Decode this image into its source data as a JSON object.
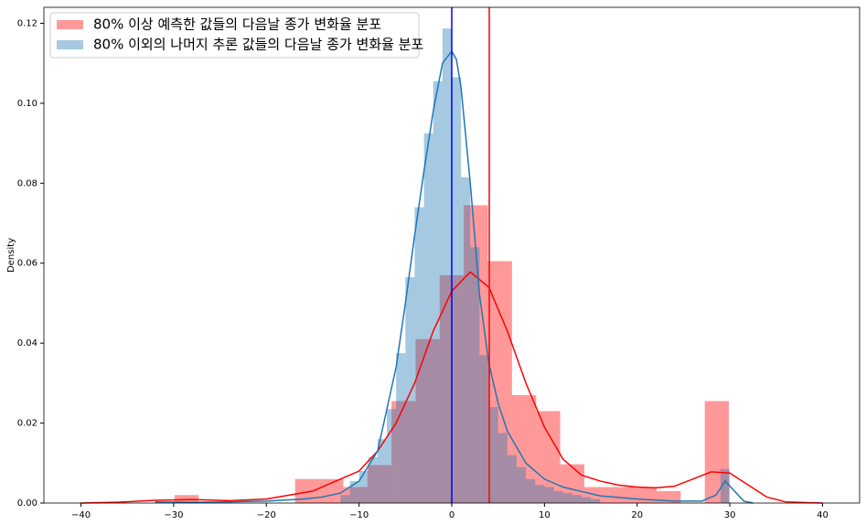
{
  "chart_data": {
    "type": "histogram",
    "ylabel": "Density",
    "xlim": [
      -44,
      44
    ],
    "ylim": [
      0,
      0.124
    ],
    "xticks": [
      {
        "value": -40,
        "label": "−40"
      },
      {
        "value": -30,
        "label": "−30"
      },
      {
        "value": -20,
        "label": "−20"
      },
      {
        "value": -10,
        "label": "−10"
      },
      0,
      10,
      20,
      30,
      40
    ],
    "yticks": [
      {
        "value": 0,
        "label": "0.00"
      },
      0.02,
      0.04,
      0.06,
      0.08,
      {
        "value": 0.1,
        "label": "0.10"
      },
      0.12
    ],
    "grid": false,
    "legend": "upper left",
    "series": [
      {
        "name": "80% 이상 예측한 값들의 다음날 종가 변화율 분포",
        "color": "#ff0000",
        "line_color": "#ff0000",
        "bins": [
          -29.9,
          -27.3,
          -24.7,
          -22.1,
          -19.5,
          -16.9,
          -14.3,
          -11.7,
          -9.1,
          -6.5,
          -3.9,
          -1.3,
          1.3,
          3.9,
          6.5,
          9.1,
          11.7,
          14.3,
          16.9,
          19.5,
          22.1,
          24.7,
          27.3,
          29.9
        ],
        "values": [
          0.002,
          0,
          0,
          0,
          0,
          0.006,
          0.006,
          0.004,
          0.0095,
          0.0255,
          0.041,
          0.057,
          0.0745,
          0.0605,
          0.027,
          0.023,
          0.0097,
          0.004,
          0.004,
          0.004,
          0.003,
          0,
          0.0255
        ],
        "kde_x": [
          -40,
          -36,
          -32,
          -28,
          -24,
          -20,
          -15,
          -10,
          -8,
          -6,
          -4,
          -2,
          0,
          2,
          4,
          6,
          8,
          10,
          12,
          14,
          16,
          18,
          20,
          22,
          24,
          26,
          28,
          30,
          32,
          34,
          36,
          40
        ],
        "kde_y": [
          0,
          0.0002,
          0.0007,
          0.0009,
          0.0006,
          0.001,
          0.003,
          0.008,
          0.013,
          0.02,
          0.03,
          0.043,
          0.053,
          0.0578,
          0.054,
          0.043,
          0.03,
          0.019,
          0.011,
          0.007,
          0.0055,
          0.0045,
          0.004,
          0.0038,
          0.0042,
          0.006,
          0.0078,
          0.0075,
          0.0045,
          0.0015,
          0.0003,
          0
        ],
        "vline": 4.05
      },
      {
        "name": "80% 이외의 나머지 추론 값들의 다음날 종가 변화율 분포",
        "color": "#1f77b4",
        "line_color": "#0000ff",
        "bins": [
          -12,
          -11,
          -10,
          -9,
          -8,
          -7,
          -6,
          -5,
          -4,
          -3,
          -2,
          -1,
          0,
          1,
          2,
          3,
          4,
          5,
          6,
          7,
          8,
          9,
          10,
          11,
          12,
          13,
          14,
          15,
          16,
          17,
          18,
          19,
          20,
          21,
          22,
          23,
          24,
          25,
          26,
          27,
          28,
          29,
          30
        ],
        "values": [
          0.002,
          0.0055,
          0.008,
          0.0115,
          0.016,
          0.0235,
          0.0375,
          0.0565,
          0.074,
          0.0925,
          0.1055,
          0.1187,
          0.1065,
          0.0815,
          0.064,
          0.037,
          0.024,
          0.0175,
          0.012,
          0.009,
          0.006,
          0.0045,
          0.004,
          0.003,
          0.0025,
          0.002,
          0.0015,
          0.001,
          0,
          0,
          0,
          0,
          0,
          0,
          0,
          0,
          0,
          0,
          0,
          0,
          0,
          0.0085
        ],
        "kde_x": [
          -32,
          -28,
          -24,
          -20,
          -16,
          -14,
          -12,
          -10,
          -8,
          -6,
          -5,
          -4,
          -3,
          -2,
          -1,
          0,
          0.5,
          1,
          2,
          3,
          4,
          5,
          6,
          8,
          10,
          12,
          16,
          20,
          24,
          27,
          28.5,
          29.5,
          30.5,
          31.5,
          32.5
        ],
        "kde_y": [
          0.0003,
          0.0002,
          0.0003,
          0.0005,
          0.001,
          0.0015,
          0.0025,
          0.0055,
          0.013,
          0.034,
          0.05,
          0.067,
          0.083,
          0.098,
          0.11,
          0.113,
          0.111,
          0.104,
          0.08,
          0.052,
          0.035,
          0.025,
          0.018,
          0.01,
          0.006,
          0.004,
          0.0018,
          0.001,
          0.0005,
          0.0005,
          0.002,
          0.0055,
          0.003,
          0.0005,
          0
        ],
        "vline": 0
      }
    ]
  }
}
